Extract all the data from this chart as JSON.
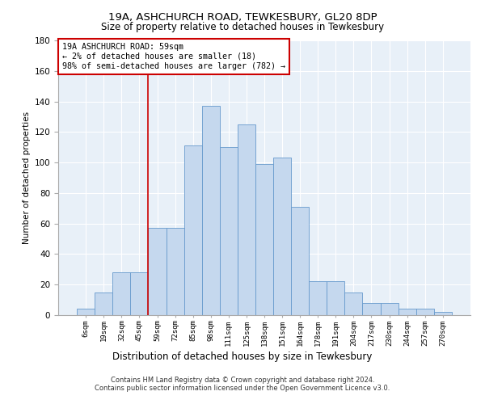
{
  "title1": "19A, ASHCHURCH ROAD, TEWKESBURY, GL20 8DP",
  "title2": "Size of property relative to detached houses in Tewkesbury",
  "xlabel": "Distribution of detached houses by size in Tewkesbury",
  "ylabel": "Number of detached properties",
  "footer1": "Contains HM Land Registry data © Crown copyright and database right 2024.",
  "footer2": "Contains public sector information licensed under the Open Government Licence v3.0.",
  "annotation_title": "19A ASHCHURCH ROAD: 59sqm",
  "annotation_line1": "← 2% of detached houses are smaller (18)",
  "annotation_line2": "98% of semi-detached houses are larger (782) →",
  "property_size_sqm": 59,
  "bar_labels": [
    "6sqm",
    "19sqm",
    "32sqm",
    "45sqm",
    "59sqm",
    "72sqm",
    "85sqm",
    "98sqm",
    "111sqm",
    "125sqm",
    "138sqm",
    "151sqm",
    "164sqm",
    "178sqm",
    "191sqm",
    "204sqm",
    "217sqm",
    "230sqm",
    "244sqm",
    "257sqm",
    "270sqm"
  ],
  "bar_values": [
    4,
    15,
    28,
    28,
    57,
    57,
    111,
    137,
    110,
    125,
    99,
    103,
    71,
    22,
    22,
    15,
    8,
    8,
    4,
    4,
    2
  ],
  "bar_color": "#c5d8ee",
  "bar_edge_color": "#6699cc",
  "property_line_color": "#cc0000",
  "annotation_box_color": "#cc0000",
  "background_color": "#ffffff",
  "plot_bg_color": "#e8f0f8",
  "grid_color": "#ffffff",
  "ylim": [
    0,
    180
  ],
  "yticks": [
    0,
    20,
    40,
    60,
    80,
    100,
    120,
    140,
    160,
    180
  ]
}
